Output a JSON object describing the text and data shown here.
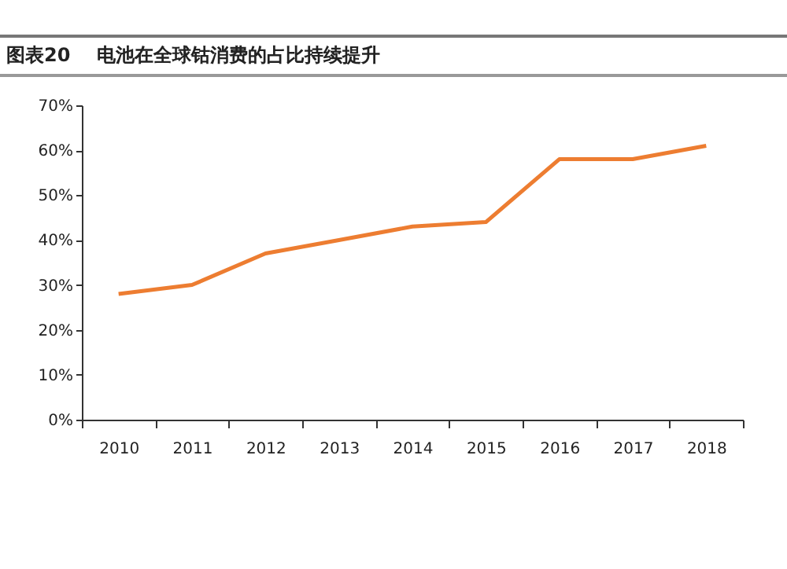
{
  "chart_data": {
    "type": "line",
    "title": "图表20    电池在全球钴消费的占比持续提升",
    "categories": [
      "2010",
      "2011",
      "2012",
      "2013",
      "2014",
      "2015",
      "2016",
      "2017",
      "2018"
    ],
    "values": [
      0.28,
      0.3,
      0.37,
      0.4,
      0.43,
      0.44,
      0.58,
      0.58,
      0.61
    ],
    "color": "#ed7d31",
    "ylim": [
      0,
      0.7
    ],
    "yticks": [
      {
        "value": 0,
        "label": "0%"
      },
      {
        "value": 0.1,
        "label": "10%"
      },
      {
        "value": 0.2,
        "label": "20%"
      },
      {
        "value": 0.3,
        "label": "30%"
      },
      {
        "value": 0.4,
        "label": "40%"
      },
      {
        "value": 0.5,
        "label": "50%"
      },
      {
        "value": 0.6,
        "label": "60%"
      },
      {
        "value": 0.7,
        "label": "70%"
      }
    ],
    "grid": false,
    "marker": "none",
    "line_style": "solid"
  }
}
